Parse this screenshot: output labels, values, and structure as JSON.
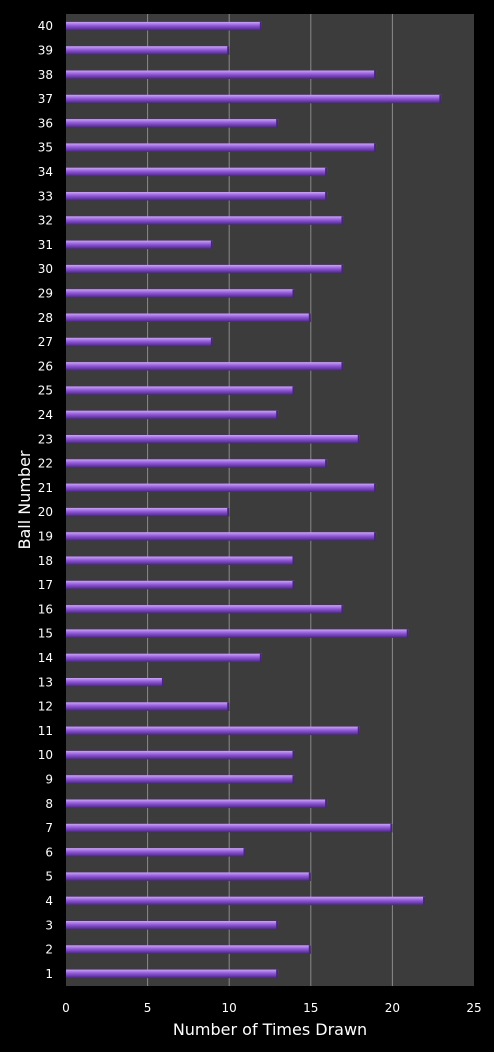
{
  "chart_data": {
    "type": "bar",
    "orientation": "horizontal",
    "title": "",
    "xlabel": "Number of Times Drawn",
    "ylabel": "Ball Number",
    "xlim": [
      0,
      25
    ],
    "xticks": [
      "0",
      "5",
      "10",
      "15",
      "20",
      "25"
    ],
    "categories": [
      "1",
      "2",
      "3",
      "4",
      "5",
      "6",
      "7",
      "8",
      "9",
      "10",
      "11",
      "12",
      "13",
      "14",
      "15",
      "16",
      "17",
      "18",
      "19",
      "20",
      "21",
      "22",
      "23",
      "24",
      "25",
      "26",
      "27",
      "28",
      "29",
      "30",
      "31",
      "32",
      "33",
      "34",
      "35",
      "36",
      "37",
      "38",
      "39",
      "40"
    ],
    "values": [
      13,
      15,
      13,
      22,
      15,
      11,
      20,
      16,
      14,
      14,
      18,
      10,
      6,
      12,
      21,
      17,
      14,
      14,
      19,
      10,
      19,
      16,
      18,
      13,
      14,
      17,
      9,
      15,
      14,
      17,
      9,
      17,
      16,
      16,
      19,
      13,
      23,
      19,
      10,
      12
    ],
    "grid": "vertical major gridlines",
    "legend": "none",
    "colors": {
      "background": "#000000",
      "plot_area": "#3c3c3c",
      "grid": "#8a8a8a",
      "bar_top": "#c9a6f2",
      "bar_mid": "#8f57d6",
      "bar_bottom": "#4a2287",
      "text": "#ffffff"
    }
  }
}
